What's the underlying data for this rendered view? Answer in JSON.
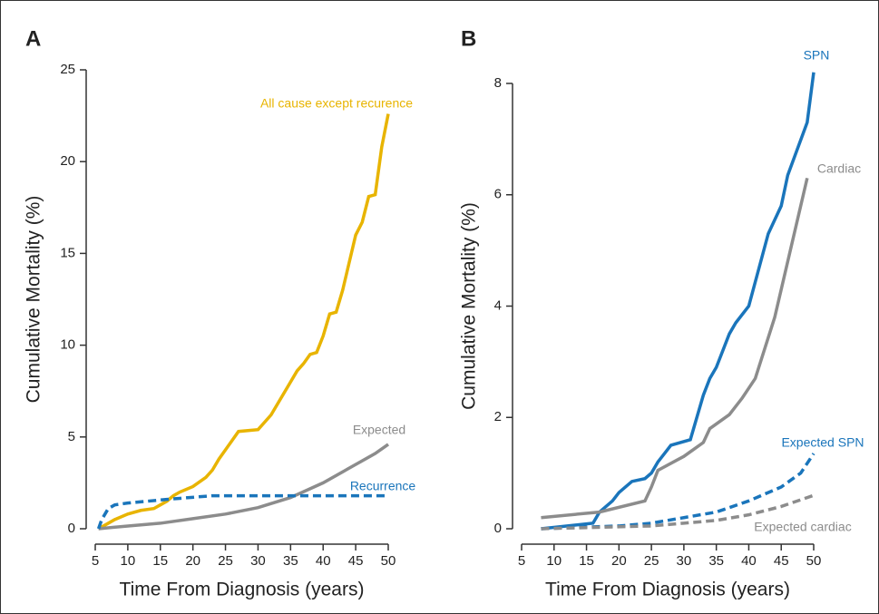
{
  "chart_data": [
    {
      "type": "line",
      "panel_label": "A",
      "xlabel": "Time From Diagnosis (years)",
      "ylabel": "Cumulative Mortality (%)",
      "xlim": [
        5,
        50
      ],
      "xticks": [
        5,
        10,
        15,
        20,
        25,
        30,
        35,
        40,
        45,
        50
      ],
      "ylim": [
        0,
        25
      ],
      "yticks": [
        0,
        5,
        10,
        15,
        20,
        25
      ],
      "series": [
        {
          "name": "All cause except recurence",
          "color": "#e8b400",
          "dash": false,
          "x": [
            5.5,
            7,
            8,
            10,
            12,
            14,
            15,
            16,
            17,
            18,
            20,
            22,
            23,
            24,
            25,
            26,
            27,
            30,
            31,
            32,
            33,
            34,
            35,
            36,
            37,
            38,
            39,
            40,
            41,
            42,
            43,
            44,
            45,
            46,
            47,
            48,
            49,
            50
          ],
          "values": [
            0,
            0.3,
            0.5,
            0.8,
            1.0,
            1.1,
            1.3,
            1.5,
            1.8,
            2.0,
            2.3,
            2.8,
            3.2,
            3.8,
            4.3,
            4.8,
            5.3,
            5.4,
            5.8,
            6.2,
            6.8,
            7.4,
            8.0,
            8.6,
            9.0,
            9.5,
            9.6,
            10.5,
            11.7,
            11.8,
            13.0,
            14.5,
            16.0,
            16.7,
            18.1,
            18.2,
            20.8,
            22.6
          ]
        },
        {
          "name": "Expected",
          "color": "#8c8c8c",
          "dash": false,
          "x": [
            5.5,
            10,
            15,
            20,
            25,
            30,
            35,
            40,
            45,
            48,
            50
          ],
          "values": [
            0,
            0.15,
            0.3,
            0.55,
            0.8,
            1.15,
            1.7,
            2.5,
            3.5,
            4.1,
            4.6
          ]
        },
        {
          "name": "Recurrence",
          "color": "#1a75bb",
          "dash": true,
          "x": [
            5.5,
            6,
            7,
            8,
            10,
            13,
            16,
            23,
            50
          ],
          "values": [
            0,
            0.5,
            1.1,
            1.3,
            1.4,
            1.5,
            1.6,
            1.8,
            1.8
          ]
        }
      ]
    },
    {
      "type": "line",
      "panel_label": "B",
      "xlabel": "Time From Diagnosis (years)",
      "ylabel": "Cumulative Mortality (%)",
      "xlim": [
        5,
        50
      ],
      "xticks": [
        5,
        10,
        15,
        20,
        25,
        30,
        35,
        40,
        45,
        50
      ],
      "ylim": [
        0,
        8
      ],
      "yticks": [
        0,
        2,
        4,
        6,
        8
      ],
      "series": [
        {
          "name": "SPN",
          "color": "#1a75bb",
          "dash": false,
          "x": [
            8,
            16,
            17,
            19,
            20,
            21,
            22,
            24,
            25,
            26,
            27,
            28,
            31,
            32,
            33,
            34,
            35,
            36,
            37,
            38,
            40,
            43,
            45,
            46,
            49,
            50
          ],
          "values": [
            0,
            0.1,
            0.3,
            0.5,
            0.65,
            0.75,
            0.85,
            0.9,
            1.0,
            1.2,
            1.35,
            1.5,
            1.6,
            2.0,
            2.4,
            2.7,
            2.9,
            3.2,
            3.5,
            3.7,
            4.0,
            5.3,
            5.8,
            6.35,
            7.3,
            8.2
          ]
        },
        {
          "name": "Cardiac",
          "color": "#8c8c8c",
          "dash": false,
          "x": [
            8,
            17,
            24,
            25,
            26,
            30,
            33,
            34,
            37,
            39,
            41,
            44,
            49
          ],
          "values": [
            0.2,
            0.3,
            0.5,
            0.75,
            1.05,
            1.3,
            1.55,
            1.8,
            2.05,
            2.35,
            2.7,
            3.8,
            6.3
          ]
        },
        {
          "name": "Expected SPN",
          "color": "#1a75bb",
          "dash": true,
          "x": [
            8,
            20,
            25,
            30,
            35,
            40,
            45,
            48,
            50
          ],
          "values": [
            0,
            0.05,
            0.1,
            0.2,
            0.3,
            0.5,
            0.75,
            1.0,
            1.35
          ]
        },
        {
          "name": "Expected cardiac",
          "color": "#8c8c8c",
          "dash": true,
          "x": [
            8,
            25,
            30,
            35,
            40,
            45,
            50
          ],
          "values": [
            0,
            0.05,
            0.1,
            0.15,
            0.25,
            0.4,
            0.6
          ]
        }
      ]
    }
  ]
}
